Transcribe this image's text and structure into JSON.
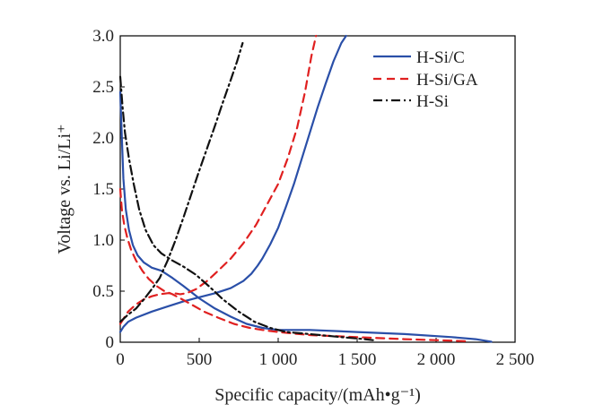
{
  "chart_data": {
    "type": "line",
    "xlabel": "Specific capacity/(mAh•g⁻¹)",
    "ylabel": "Voltage vs. Li/Li⁺",
    "xlim": [
      0,
      2500
    ],
    "ylim": [
      0,
      3.0
    ],
    "xticks": [
      0,
      500,
      1000,
      1500,
      2000,
      2500
    ],
    "xtick_labels": [
      "0",
      "500",
      "1 000",
      "1 500",
      "2 000",
      "2 500"
    ],
    "yticks": [
      0,
      0.5,
      1.0,
      1.5,
      2.0,
      2.5,
      3.0
    ],
    "ytick_labels": [
      "0",
      "0.5",
      "1.0",
      "1.5",
      "2.0",
      "2.5",
      "3.0"
    ],
    "legend_position": "top-right",
    "series": [
      {
        "name": "H-Si/C",
        "color": "#2a4fa8",
        "style": "solid",
        "discharge": [
          [
            0,
            2.45
          ],
          [
            10,
            2.0
          ],
          [
            20,
            1.6
          ],
          [
            35,
            1.3
          ],
          [
            55,
            1.1
          ],
          [
            80,
            0.95
          ],
          [
            110,
            0.85
          ],
          [
            150,
            0.78
          ],
          [
            200,
            0.73
          ],
          [
            260,
            0.7
          ],
          [
            330,
            0.63
          ],
          [
            400,
            0.55
          ],
          [
            500,
            0.43
          ],
          [
            600,
            0.33
          ],
          [
            700,
            0.25
          ],
          [
            800,
            0.18
          ],
          [
            900,
            0.14
          ],
          [
            1000,
            0.12
          ],
          [
            1200,
            0.12
          ],
          [
            1500,
            0.1
          ],
          [
            1800,
            0.08
          ],
          [
            2100,
            0.05
          ],
          [
            2250,
            0.03
          ],
          [
            2350,
            0.005
          ]
        ],
        "charge": [
          [
            0,
            0.1
          ],
          [
            20,
            0.15
          ],
          [
            50,
            0.2
          ],
          [
            100,
            0.24
          ],
          [
            200,
            0.3
          ],
          [
            300,
            0.35
          ],
          [
            400,
            0.4
          ],
          [
            500,
            0.44
          ],
          [
            600,
            0.48
          ],
          [
            700,
            0.53
          ],
          [
            780,
            0.6
          ],
          [
            830,
            0.67
          ],
          [
            870,
            0.75
          ],
          [
            900,
            0.82
          ],
          [
            950,
            0.96
          ],
          [
            1000,
            1.12
          ],
          [
            1050,
            1.33
          ],
          [
            1100,
            1.55
          ],
          [
            1150,
            1.8
          ],
          [
            1200,
            2.05
          ],
          [
            1250,
            2.3
          ],
          [
            1300,
            2.53
          ],
          [
            1350,
            2.75
          ],
          [
            1400,
            2.93
          ],
          [
            1430,
            3.0
          ]
        ]
      },
      {
        "name": "H-Si/GA",
        "color": "#e02020",
        "style": "dashed",
        "discharge": [
          [
            0,
            1.5
          ],
          [
            10,
            1.3
          ],
          [
            25,
            1.15
          ],
          [
            45,
            1.02
          ],
          [
            70,
            0.9
          ],
          [
            100,
            0.8
          ],
          [
            140,
            0.7
          ],
          [
            180,
            0.62
          ],
          [
            230,
            0.55
          ],
          [
            280,
            0.5
          ],
          [
            330,
            0.47
          ],
          [
            380,
            0.43
          ],
          [
            450,
            0.37
          ],
          [
            530,
            0.3
          ],
          [
            620,
            0.24
          ],
          [
            720,
            0.18
          ],
          [
            820,
            0.14
          ],
          [
            900,
            0.12
          ],
          [
            1000,
            0.1
          ],
          [
            1200,
            0.07
          ],
          [
            1500,
            0.05
          ],
          [
            1800,
            0.03
          ],
          [
            2000,
            0.02
          ],
          [
            2200,
            0.01
          ]
        ],
        "charge": [
          [
            0,
            0.18
          ],
          [
            25,
            0.24
          ],
          [
            50,
            0.3
          ],
          [
            100,
            0.37
          ],
          [
            150,
            0.42
          ],
          [
            200,
            0.45
          ],
          [
            250,
            0.47
          ],
          [
            300,
            0.48
          ],
          [
            340,
            0.48
          ],
          [
            380,
            0.47
          ],
          [
            420,
            0.48
          ],
          [
            480,
            0.52
          ],
          [
            550,
            0.6
          ],
          [
            620,
            0.7
          ],
          [
            700,
            0.82
          ],
          [
            780,
            0.97
          ],
          [
            860,
            1.15
          ],
          [
            930,
            1.35
          ],
          [
            1000,
            1.55
          ],
          [
            1060,
            1.8
          ],
          [
            1120,
            2.1
          ],
          [
            1170,
            2.45
          ],
          [
            1210,
            2.8
          ],
          [
            1240,
            3.0
          ]
        ]
      },
      {
        "name": "H-Si",
        "color": "#111111",
        "style": "dashdot",
        "discharge": [
          [
            0,
            2.6
          ],
          [
            15,
            2.3
          ],
          [
            30,
            2.05
          ],
          [
            55,
            1.8
          ],
          [
            85,
            1.55
          ],
          [
            120,
            1.3
          ],
          [
            160,
            1.1
          ],
          [
            210,
            0.95
          ],
          [
            260,
            0.87
          ],
          [
            330,
            0.8
          ],
          [
            400,
            0.74
          ],
          [
            480,
            0.66
          ],
          [
            560,
            0.55
          ],
          [
            650,
            0.42
          ],
          [
            750,
            0.3
          ],
          [
            850,
            0.2
          ],
          [
            950,
            0.14
          ],
          [
            1050,
            0.1
          ],
          [
            1200,
            0.08
          ],
          [
            1400,
            0.05
          ],
          [
            1550,
            0.03
          ],
          [
            1600,
            0.02
          ]
        ],
        "charge": [
          [
            0,
            0.2
          ],
          [
            50,
            0.27
          ],
          [
            100,
            0.33
          ],
          [
            150,
            0.42
          ],
          [
            200,
            0.52
          ],
          [
            250,
            0.63
          ],
          [
            300,
            0.8
          ],
          [
            350,
            1.0
          ],
          [
            400,
            1.22
          ],
          [
            450,
            1.45
          ],
          [
            500,
            1.68
          ],
          [
            550,
            1.9
          ],
          [
            600,
            2.12
          ],
          [
            650,
            2.35
          ],
          [
            700,
            2.57
          ],
          [
            740,
            2.75
          ],
          [
            775,
            2.93
          ]
        ]
      }
    ]
  }
}
